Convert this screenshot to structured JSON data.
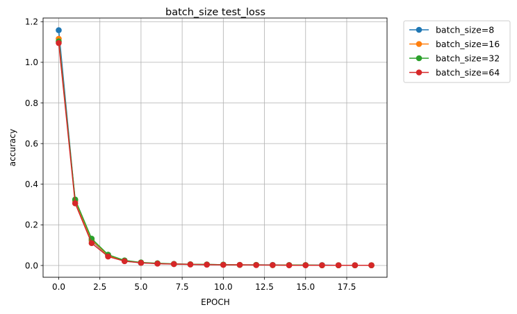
{
  "chart_data": {
    "type": "line",
    "title": "batch_size test_loss",
    "xlabel": "EPOCH",
    "ylabel": "accuracy",
    "xlim": [
      -0.95,
      19.95
    ],
    "ylim": [
      -0.058,
      1.218
    ],
    "xticks": [
      0,
      2.5,
      5,
      7.5,
      10,
      12.5,
      15,
      17.5
    ],
    "xtick_labels": [
      "0.0",
      "2.5",
      "5.0",
      "7.5",
      "10.0",
      "12.5",
      "15.0",
      "17.5"
    ],
    "yticks": [
      0,
      0.2,
      0.4,
      0.6,
      0.8,
      1.0,
      1.2
    ],
    "ytick_labels": [
      "0.0",
      "0.2",
      "0.4",
      "0.6",
      "0.8",
      "1.0",
      "1.2"
    ],
    "grid": true,
    "legend_position": "outside-right-top",
    "x": [
      0,
      1,
      2,
      3,
      4,
      5,
      6,
      7,
      8,
      9,
      10,
      11,
      12,
      13,
      14,
      15,
      16,
      17,
      18,
      19
    ],
    "series": [
      {
        "name": "batch_size=8",
        "color": "#1f77b4",
        "values": [
          1.158,
          0.318,
          0.122,
          0.048,
          0.022,
          0.013,
          0.01,
          0.007,
          0.006,
          0.005,
          0.004,
          0.003,
          0.003,
          0.003,
          0.002,
          0.002,
          0.002,
          0.001,
          0.001,
          0.001
        ]
      },
      {
        "name": "batch_size=16",
        "color": "#ff7f0e",
        "values": [
          1.116,
          0.32,
          0.125,
          0.049,
          0.023,
          0.014,
          0.01,
          0.007,
          0.006,
          0.005,
          0.004,
          0.003,
          0.003,
          0.002,
          0.002,
          0.002,
          0.001,
          0.001,
          0.001,
          0.001
        ]
      },
      {
        "name": "batch_size=32",
        "color": "#2ca02c",
        "values": [
          1.103,
          0.325,
          0.132,
          0.053,
          0.025,
          0.015,
          0.011,
          0.008,
          0.006,
          0.005,
          0.004,
          0.003,
          0.003,
          0.002,
          0.002,
          0.002,
          0.001,
          0.001,
          0.001,
          0.001
        ]
      },
      {
        "name": "batch_size=64",
        "color": "#d62728",
        "values": [
          1.095,
          0.306,
          0.11,
          0.044,
          0.021,
          0.013,
          0.009,
          0.007,
          0.005,
          0.004,
          0.003,
          0.003,
          0.002,
          0.002,
          0.001,
          0.001,
          0.001,
          0.001,
          0.001,
          0.001
        ]
      }
    ]
  }
}
